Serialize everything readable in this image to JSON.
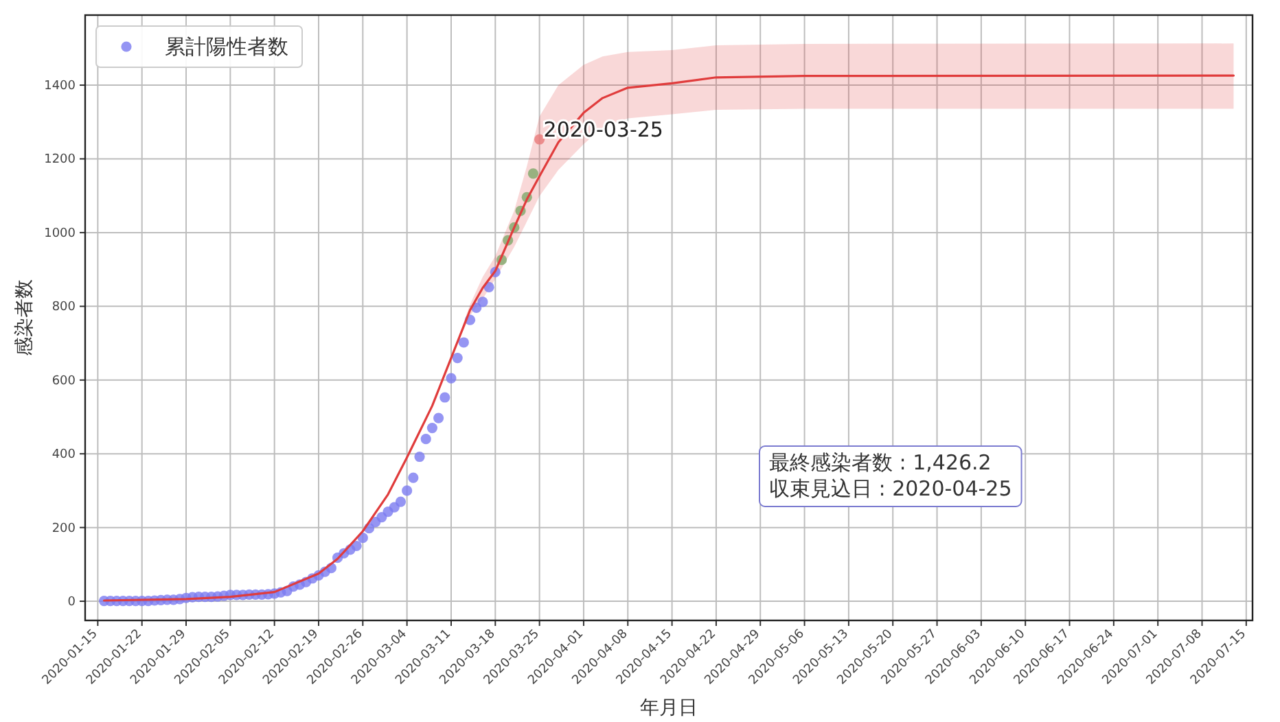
{
  "chart_data": {
    "type": "scatter",
    "xlabel": "年月日",
    "ylabel": "感染者数",
    "xlim": [
      "2020-01-13",
      "2020-07-16"
    ],
    "ylim": [
      -52,
      1590
    ],
    "xticks": [
      "2020-01-15",
      "2020-01-22",
      "2020-01-29",
      "2020-02-05",
      "2020-02-12",
      "2020-02-19",
      "2020-02-26",
      "2020-03-04",
      "2020-03-11",
      "2020-03-18",
      "2020-03-25",
      "2020-04-01",
      "2020-04-08",
      "2020-04-15",
      "2020-04-22",
      "2020-04-29",
      "2020-05-06",
      "2020-05-13",
      "2020-05-20",
      "2020-05-27",
      "2020-06-03",
      "2020-06-10",
      "2020-06-17",
      "2020-06-24",
      "2020-07-01",
      "2020-07-08",
      "2020-07-15"
    ],
    "yticks": [
      0,
      200,
      400,
      600,
      800,
      1000,
      1200,
      1400
    ],
    "grid": true,
    "legend": "top left",
    "marker": "circle",
    "series": [
      {
        "type": "line",
        "color": "#e03c3c",
        "line_style": "solid",
        "marker": "none",
        "x": [
          "2020-01-16",
          "2020-01-29",
          "2020-02-05",
          "2020-02-12",
          "2020-02-19",
          "2020-02-22",
          "2020-02-26",
          "2020-03-01",
          "2020-03-04",
          "2020-03-06",
          "2020-03-08",
          "2020-03-11",
          "2020-03-14",
          "2020-03-16",
          "2020-03-18",
          "2020-03-21",
          "2020-03-23",
          "2020-03-25",
          "2020-03-28",
          "2020-04-01",
          "2020-04-04",
          "2020-04-08",
          "2020-04-15",
          "2020-04-22",
          "2020-05-06",
          "2020-07-13"
        ],
        "values": [
          2,
          6,
          12,
          25,
          75,
          115,
          190,
          290,
          390,
          460,
          530,
          660,
          790,
          850,
          896,
          1014,
          1090,
          1153,
          1245,
          1325,
          1365,
          1393,
          1405,
          1421,
          1425,
          1426
        ],
        "lower": [
          null,
          null,
          null,
          null,
          null,
          null,
          null,
          null,
          null,
          null,
          null,
          660,
          775,
          820,
          874,
          961,
          1030,
          1099,
          1170,
          1240,
          1285,
          1310,
          1321,
          1333,
          1336,
          1336
        ],
        "upper": [
          null,
          null,
          null,
          null,
          null,
          null,
          null,
          null,
          null,
          null,
          null,
          660,
          805,
          880,
          936,
          1060,
          1180,
          1315,
          1400,
          1455,
          1478,
          1490,
          1495,
          1508,
          1512,
          1513
        ]
      },
      {
        "name": "累計陽性者数",
        "color": "#7b7bf0",
        "x": [
          "2020-01-16",
          "2020-01-17",
          "2020-01-18",
          "2020-01-19",
          "2020-01-20",
          "2020-01-21",
          "2020-01-22",
          "2020-01-23",
          "2020-01-24",
          "2020-01-25",
          "2020-01-26",
          "2020-01-27",
          "2020-01-28",
          "2020-01-29",
          "2020-01-30",
          "2020-01-31",
          "2020-02-01",
          "2020-02-02",
          "2020-02-03",
          "2020-02-04",
          "2020-02-05",
          "2020-02-06",
          "2020-02-07",
          "2020-02-08",
          "2020-02-09",
          "2020-02-10",
          "2020-02-11",
          "2020-02-12",
          "2020-02-13",
          "2020-02-14",
          "2020-02-15",
          "2020-02-16",
          "2020-02-17",
          "2020-02-18",
          "2020-02-19",
          "2020-02-20",
          "2020-02-21",
          "2020-02-22",
          "2020-02-23",
          "2020-02-24",
          "2020-02-25",
          "2020-02-26",
          "2020-02-27",
          "2020-02-28",
          "2020-02-29",
          "2020-03-01",
          "2020-03-02",
          "2020-03-03",
          "2020-03-04",
          "2020-03-05",
          "2020-03-06",
          "2020-03-07",
          "2020-03-08",
          "2020-03-09",
          "2020-03-10",
          "2020-03-11",
          "2020-03-12",
          "2020-03-13",
          "2020-03-14",
          "2020-03-15",
          "2020-03-16",
          "2020-03-17",
          "2020-03-18"
        ],
        "values": [
          1,
          1,
          1,
          1,
          1,
          1,
          1,
          1,
          2,
          3,
          4,
          4,
          6,
          9,
          11,
          12,
          12,
          12,
          13,
          15,
          17,
          17,
          17,
          18,
          18,
          18,
          19,
          21,
          24,
          28,
          40,
          45,
          52,
          62,
          70,
          80,
          90,
          118,
          130,
          140,
          150,
          172,
          198,
          215,
          228,
          243,
          255,
          270,
          300,
          335,
          392,
          440,
          470,
          497,
          553,
          605,
          660,
          702,
          763,
          796,
          812,
          852,
          893
        ]
      },
      {
        "color": "#7fa86a",
        "x": [
          "2020-03-19",
          "2020-03-20",
          "2020-03-21",
          "2020-03-22",
          "2020-03-23",
          "2020-03-24"
        ],
        "values": [
          926,
          979,
          1014,
          1059,
          1096,
          1160
        ]
      },
      {
        "color": "#e87a7a",
        "x": [
          "2020-03-25"
        ],
        "values": [
          1253
        ]
      }
    ],
    "annotations": [
      {
        "text": "2020-03-25",
        "x": "2020-03-25",
        "y": 1253
      },
      "最終感染者数 : 1,426.2\n収束見込日 : 2020-04-25"
    ]
  }
}
